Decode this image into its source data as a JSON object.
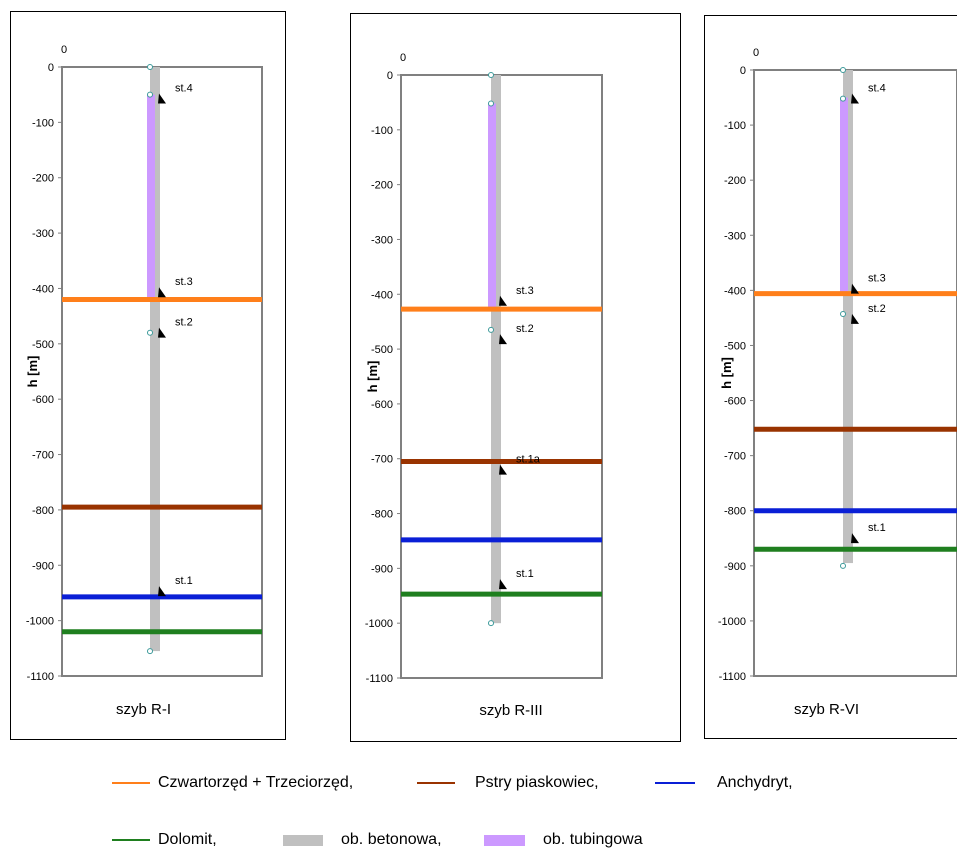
{
  "chart_data": [
    {
      "type": "line",
      "title": "szyb R-I",
      "ylabel": "h [m]",
      "ylim": [
        -1100,
        0
      ],
      "y_ticks": [
        "0",
        "-100",
        "-200",
        "-300",
        "-400",
        "-500",
        "-600",
        "-700",
        "-800",
        "-900",
        "-1000",
        "-1100"
      ],
      "x_tick": "0",
      "layer_boundaries": [
        {
          "layer": "Czwartorzęd + Trzeciorzęd,",
          "depth": -420
        },
        {
          "layer": "Pstry piaskowiec,",
          "depth": -795
        },
        {
          "layer": "Anchydryt,",
          "depth": -957
        },
        {
          "layer": "Dolomit,",
          "depth": -1020
        }
      ],
      "lining": [
        {
          "type": "ob. betonowa,",
          "from": 0,
          "to": -1055
        },
        {
          "type": "ob. tubingowa",
          "from": -50,
          "to": -420
        }
      ],
      "points": [
        0,
        -50,
        -480,
        -1055
      ],
      "stations": [
        {
          "label": "st.4",
          "depth": -55
        },
        {
          "label": "st.3",
          "depth": -405
        },
        {
          "label": "st.2",
          "depth": -478
        },
        {
          "label": "st.1",
          "depth": -945
        }
      ]
    },
    {
      "type": "line",
      "title": "szyb R-III",
      "ylabel": "h [m]",
      "ylim": [
        -1100,
        0
      ],
      "y_ticks": [
        "0",
        "-100",
        "-200",
        "-300",
        "-400",
        "-500",
        "-600",
        "-700",
        "-800",
        "-900",
        "-1000",
        "-1100"
      ],
      "x_tick": "0",
      "layer_boundaries": [
        {
          "layer": "Czwartorzęd + Trzeciorzęd,",
          "depth": -427
        },
        {
          "layer": "Pstry piaskowiec,",
          "depth": -705
        },
        {
          "layer": "Anchydryt,",
          "depth": -848
        },
        {
          "layer": "Dolomit,",
          "depth": -947
        }
      ],
      "lining": [
        {
          "type": "ob. betonowa,",
          "from": 0,
          "to": -1000
        },
        {
          "type": "ob. tubingowa",
          "from": -52,
          "to": -427
        }
      ],
      "points": [
        0,
        -52,
        -465,
        -1000
      ],
      "stations": [
        {
          "label": "st.3",
          "depth": -410
        },
        {
          "label": "st.2",
          "depth": -480
        },
        {
          "label": "st.1a",
          "depth": -718
        },
        {
          "label": "st.1",
          "depth": -927
        }
      ]
    },
    {
      "type": "line",
      "title": "szyb R-VI",
      "ylabel": "h [m]",
      "ylim": [
        -1100,
        0
      ],
      "y_ticks": [
        "0",
        "-100",
        "-200",
        "-300",
        "-400",
        "-500",
        "-600",
        "-700",
        "-800",
        "-900",
        "-1000",
        "-1100"
      ],
      "x_tick": "0",
      "layer_boundaries": [
        {
          "layer": "Czwartorzęd + Trzeciorzęd,",
          "depth": -406
        },
        {
          "layer": "Pstry piaskowiec,",
          "depth": -652
        },
        {
          "layer": "Anchydryt,",
          "depth": -800
        },
        {
          "layer": "Dolomit,",
          "depth": -870
        }
      ],
      "lining": [
        {
          "type": "ob. betonowa,",
          "from": 0,
          "to": -895
        },
        {
          "type": "ob. tubingowa",
          "from": -50,
          "to": -406
        }
      ],
      "points": [
        0,
        -52,
        -443,
        -900
      ],
      "stations": [
        {
          "label": "st.4",
          "depth": -50
        },
        {
          "label": "st.3",
          "depth": -395
        },
        {
          "label": "st.2",
          "depth": -450
        },
        {
          "label": "st.1",
          "depth": -848
        }
      ]
    }
  ],
  "colors": {
    "Czwartorzęd + Trzeciorzęd,": "#FF7F1A",
    "Pstry piaskowiec,": "#993300",
    "Anchydryt,": "#0A1FD6",
    "Dolomit,": "#1F7F1F",
    "ob. betonowa,": "#C0C0C0",
    "ob. tubingowa": "#CC99FF",
    "marker": "#3C9A9A"
  },
  "legend": [
    {
      "label": "Czwartorzęd + Trzeciorzęd,",
      "kind": "line"
    },
    {
      "label": "Pstry piaskowiec,",
      "kind": "line"
    },
    {
      "label": "Anchydryt,",
      "kind": "line"
    },
    {
      "label": "Dolomit,",
      "kind": "line"
    },
    {
      "label": "ob. betonowa,",
      "kind": "bar"
    },
    {
      "label": "ob. tubingowa",
      "kind": "bar"
    }
  ]
}
